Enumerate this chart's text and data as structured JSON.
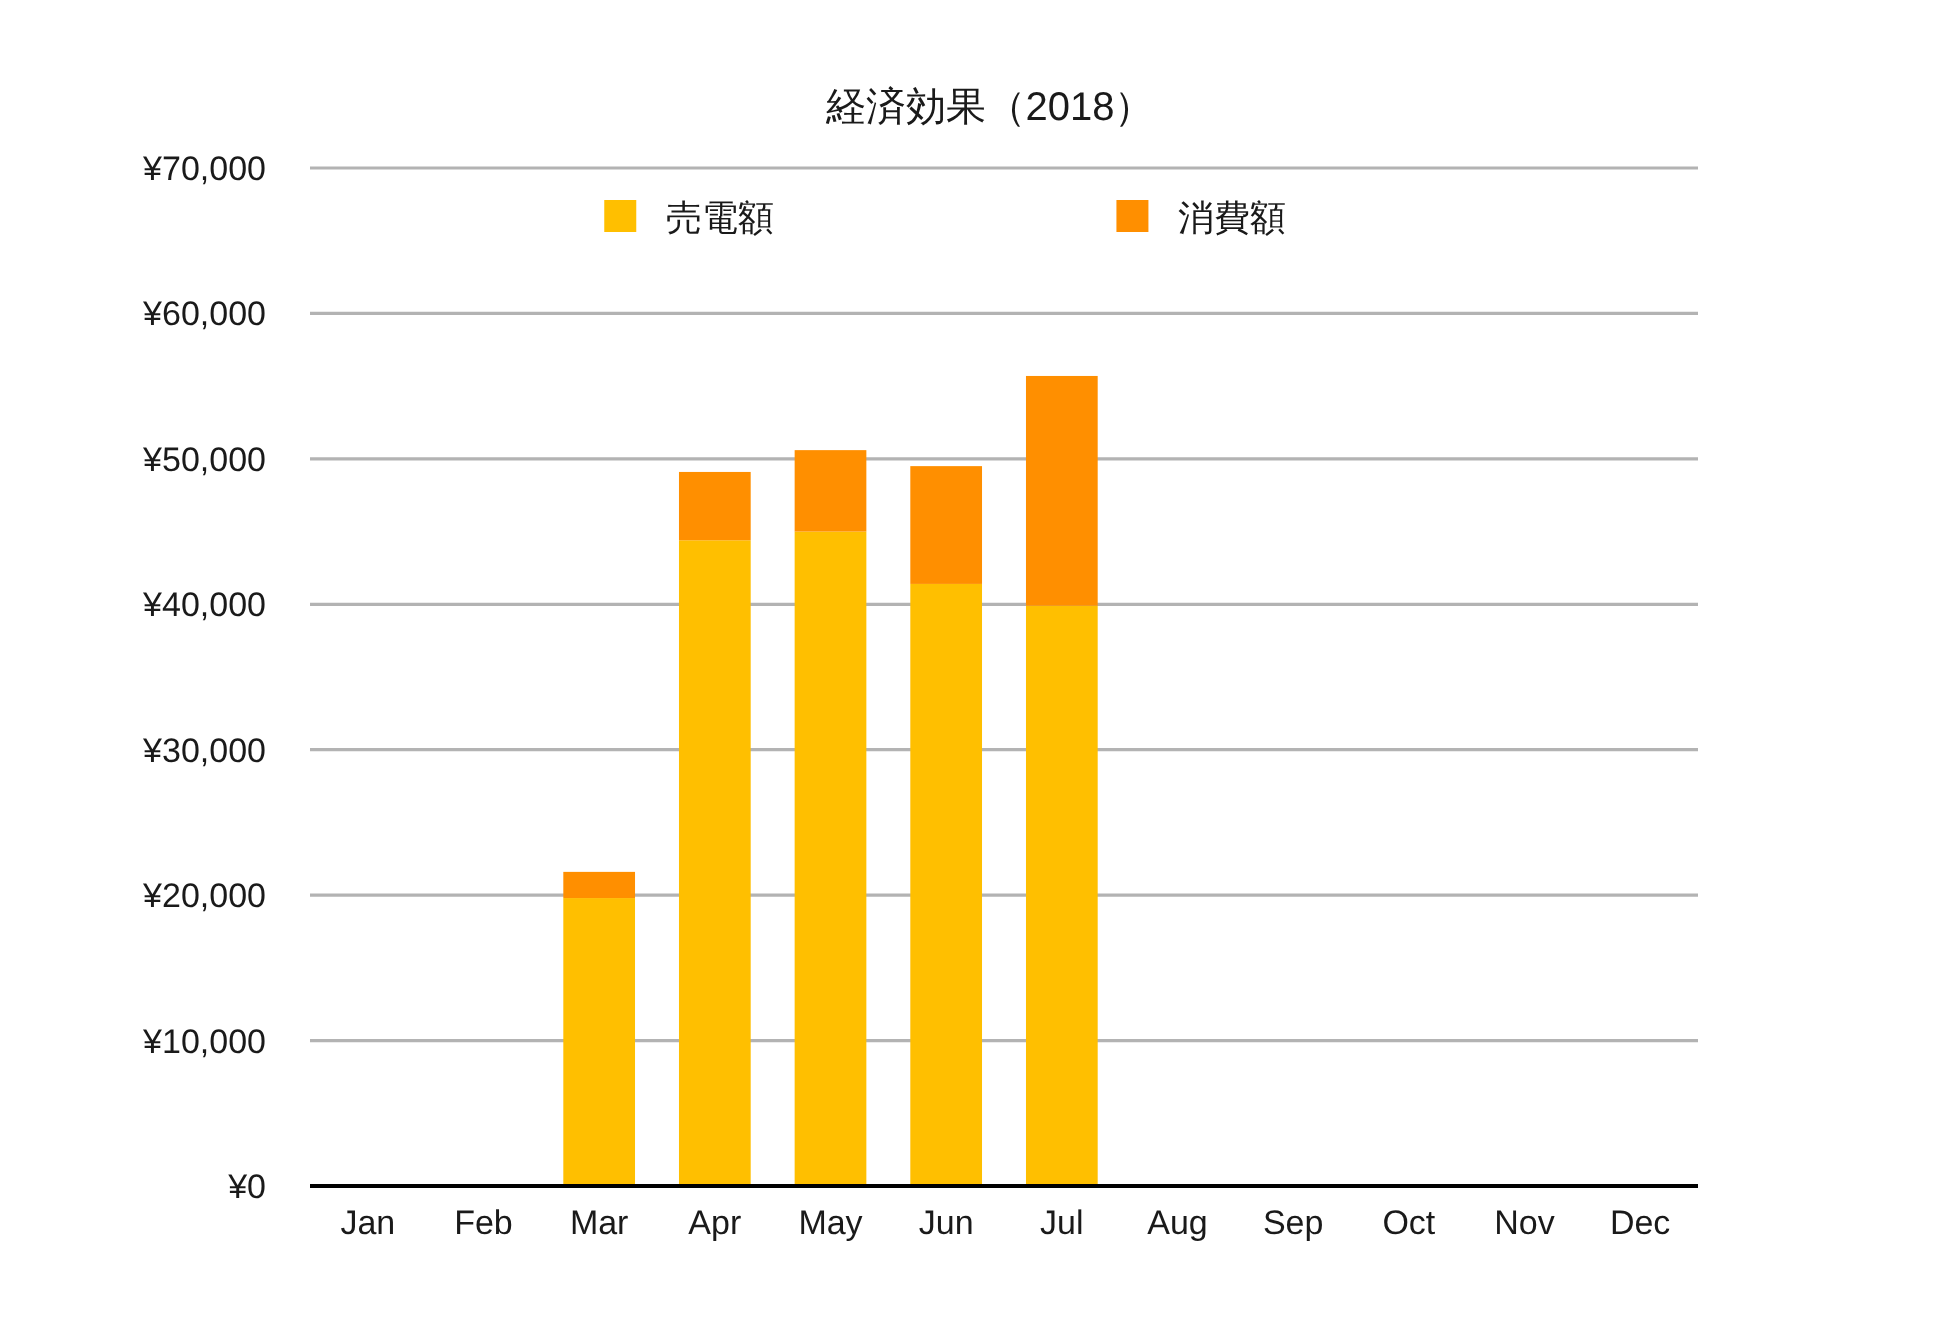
{
  "chart_data": {
    "type": "bar",
    "title": "経済効果（2018）",
    "categories": [
      "Jan",
      "Feb",
      "Mar",
      "Apr",
      "May",
      "Jun",
      "Jul",
      "Aug",
      "Sep",
      "Oct",
      "Nov",
      "Dec"
    ],
    "stacked": true,
    "series": [
      {
        "name": "売電額",
        "color": "#ffbf00",
        "values": [
          null,
          null,
          19800,
          44400,
          45000,
          41400,
          39900,
          null,
          null,
          null,
          null,
          null
        ]
      },
      {
        "name": "消費額",
        "color": "#ff8f00",
        "values": [
          null,
          null,
          1800,
          4700,
          5600,
          8100,
          15800,
          null,
          null,
          null,
          null,
          null
        ]
      }
    ],
    "ylim": [
      0,
      70000
    ],
    "yticks": [
      {
        "value": 0,
        "label": "¥0"
      },
      {
        "value": 10000,
        "label": "¥10,000"
      },
      {
        "value": 20000,
        "label": "¥20,000"
      },
      {
        "value": 30000,
        "label": "¥30,000"
      },
      {
        "value": 40000,
        "label": "¥40,000"
      },
      {
        "value": 50000,
        "label": "¥50,000"
      },
      {
        "value": 60000,
        "label": "¥60,000"
      },
      {
        "value": 70000,
        "label": "¥70,000"
      }
    ],
    "grid": "y",
    "legend": "top"
  }
}
